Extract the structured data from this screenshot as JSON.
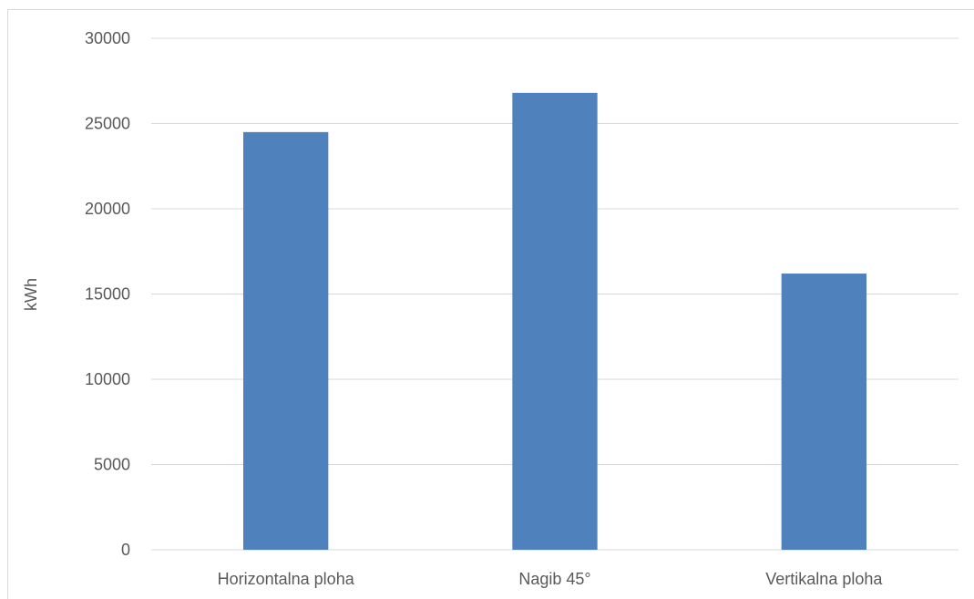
{
  "chart_data": {
    "type": "bar",
    "title": "",
    "xlabel": "",
    "ylabel": "kWh",
    "categories": [
      "Horizontalna ploha",
      "Nagib 45°",
      "Vertikalna ploha"
    ],
    "values": [
      24500,
      26800,
      16200
    ],
    "ylim": [
      0,
      30000
    ],
    "yticks": [
      "0",
      "5000",
      "10000",
      "15000",
      "20000",
      "25000",
      "30000"
    ],
    "grid": true,
    "legend": "none",
    "bar_color": "#4f81bd",
    "grid_color": "#d9d9d9",
    "text_color": "#595959"
  }
}
